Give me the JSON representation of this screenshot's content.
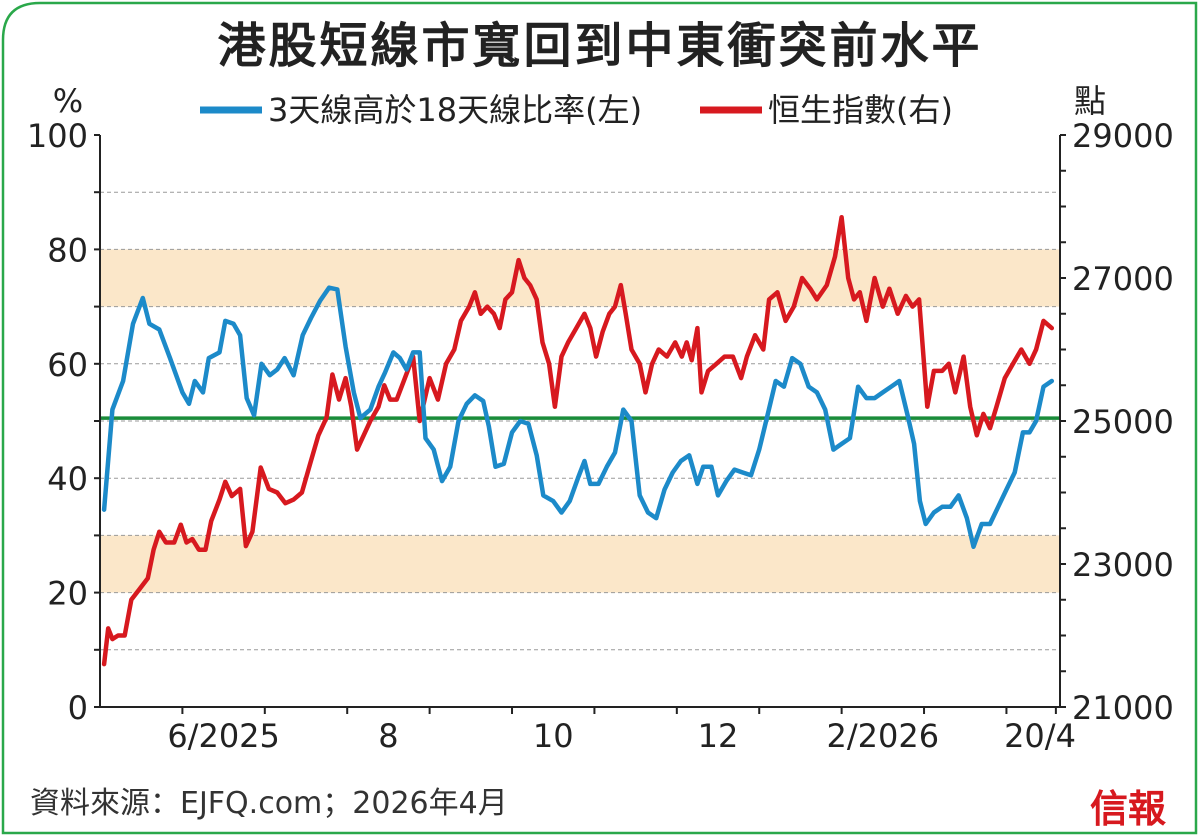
{
  "title": "港股短線市寬回到中東衝突前水平",
  "source": "資料來源：EJFQ.com；2026年4月",
  "logo": "信報",
  "colors": {
    "frame": "#2aa84a",
    "left_series": "#1c8ac9",
    "right_series": "#d7191f",
    "reference_line": "#1a8c3a",
    "band": "#fbe7c9"
  },
  "chart_data": {
    "type": "line",
    "left_axis": {
      "unit_label": "%",
      "ylim": [
        0,
        100
      ],
      "ticks": [
        0,
        20,
        40,
        60,
        80,
        100
      ]
    },
    "right_axis": {
      "unit_label": "點",
      "ylim": [
        21000,
        29000
      ],
      "ticks": [
        21000,
        23000,
        25000,
        27000,
        29000
      ]
    },
    "x_tick_labels": [
      {
        "label": "6/2025",
        "x": 1.5
      },
      {
        "label": "8",
        "x": 3.5
      },
      {
        "label": "10",
        "x": 5.5
      },
      {
        "label": "12",
        "x": 7.5
      },
      {
        "label": "2/2026",
        "x": 9.5
      },
      {
        "label": "20/4",
        "x": 11.6
      }
    ],
    "xlim": [
      0,
      11.65
    ],
    "bands": [
      {
        "from": 70,
        "to": 80
      },
      {
        "from": 20,
        "to": 30
      }
    ],
    "reference_line": {
      "axis": "left",
      "value": 50.5
    },
    "grid": "horizontal dashed",
    "legend": [
      "3天線高於18天線比率(左)",
      "恒生指數(右)"
    ],
    "series": [
      {
        "name": "3天線高於18天線比率(左)",
        "axis": "left",
        "points": [
          [
            0.05,
            34.5
          ],
          [
            0.15,
            52
          ],
          [
            0.28,
            57
          ],
          [
            0.4,
            67
          ],
          [
            0.52,
            71.5
          ],
          [
            0.6,
            67
          ],
          [
            0.72,
            66
          ],
          [
            0.85,
            61
          ],
          [
            1.0,
            55
          ],
          [
            1.08,
            53
          ],
          [
            1.15,
            57
          ],
          [
            1.25,
            55
          ],
          [
            1.32,
            61
          ],
          [
            1.45,
            62
          ],
          [
            1.52,
            67.5
          ],
          [
            1.62,
            67
          ],
          [
            1.7,
            65
          ],
          [
            1.78,
            54
          ],
          [
            1.87,
            51
          ],
          [
            1.96,
            60
          ],
          [
            2.06,
            58
          ],
          [
            2.15,
            59
          ],
          [
            2.24,
            61
          ],
          [
            2.35,
            58
          ],
          [
            2.46,
            65
          ],
          [
            2.56,
            68
          ],
          [
            2.67,
            71
          ],
          [
            2.78,
            73.3
          ],
          [
            2.88,
            73
          ],
          [
            2.98,
            63
          ],
          [
            3.08,
            55
          ],
          [
            3.16,
            50.5
          ],
          [
            3.28,
            52
          ],
          [
            3.38,
            56
          ],
          [
            3.46,
            58.5
          ],
          [
            3.56,
            62
          ],
          [
            3.64,
            61
          ],
          [
            3.72,
            59
          ],
          [
            3.8,
            62
          ],
          [
            3.88,
            62
          ],
          [
            3.95,
            47
          ],
          [
            4.05,
            45
          ],
          [
            4.15,
            39.5
          ],
          [
            4.25,
            42
          ],
          [
            4.35,
            50
          ],
          [
            4.45,
            53
          ],
          [
            4.55,
            54.5
          ],
          [
            4.65,
            53.5
          ],
          [
            4.72,
            49
          ],
          [
            4.8,
            42
          ],
          [
            4.9,
            42.5
          ],
          [
            5.0,
            48
          ],
          [
            5.1,
            50
          ],
          [
            5.2,
            49.5
          ],
          [
            5.3,
            44
          ],
          [
            5.38,
            37
          ],
          [
            5.5,
            36
          ],
          [
            5.6,
            34
          ],
          [
            5.7,
            36
          ],
          [
            5.8,
            40
          ],
          [
            5.88,
            43
          ],
          [
            5.95,
            39
          ],
          [
            6.05,
            39
          ],
          [
            6.15,
            42
          ],
          [
            6.25,
            44.5
          ],
          [
            6.35,
            52
          ],
          [
            6.45,
            50
          ],
          [
            6.55,
            37
          ],
          [
            6.65,
            34
          ],
          [
            6.75,
            33
          ],
          [
            6.85,
            38
          ],
          [
            6.95,
            41
          ],
          [
            7.05,
            43
          ],
          [
            7.15,
            44
          ],
          [
            7.25,
            39
          ],
          [
            7.32,
            42
          ],
          [
            7.42,
            42
          ],
          [
            7.5,
            37
          ],
          [
            7.6,
            39.5
          ],
          [
            7.7,
            41.5
          ],
          [
            7.8,
            41
          ],
          [
            7.9,
            40.5
          ],
          [
            8.0,
            45
          ],
          [
            8.1,
            51
          ],
          [
            8.2,
            57
          ],
          [
            8.3,
            56
          ],
          [
            8.4,
            61
          ],
          [
            8.5,
            60
          ],
          [
            8.6,
            56
          ],
          [
            8.7,
            55
          ],
          [
            8.8,
            52
          ],
          [
            8.9,
            45
          ],
          [
            9.0,
            46
          ],
          [
            9.1,
            47
          ],
          [
            9.2,
            56
          ],
          [
            9.3,
            54
          ],
          [
            9.4,
            54
          ],
          [
            9.5,
            55
          ],
          [
            9.6,
            56
          ],
          [
            9.7,
            57
          ],
          [
            9.8,
            51
          ],
          [
            9.88,
            46
          ],
          [
            9.95,
            36
          ],
          [
            10.02,
            32
          ],
          [
            10.12,
            34
          ],
          [
            10.22,
            35
          ],
          [
            10.32,
            35
          ],
          [
            10.42,
            37
          ],
          [
            10.52,
            33
          ],
          [
            10.6,
            28
          ],
          [
            10.7,
            32
          ],
          [
            10.8,
            32
          ],
          [
            10.9,
            35
          ],
          [
            11.0,
            38
          ],
          [
            11.1,
            41
          ],
          [
            11.2,
            48
          ],
          [
            11.28,
            48
          ],
          [
            11.36,
            50
          ],
          [
            11.45,
            56
          ],
          [
            11.55,
            57
          ]
        ]
      },
      {
        "name": "恒生指數(右)",
        "axis": "right",
        "points": [
          [
            0.05,
            21600
          ],
          [
            0.1,
            22100
          ],
          [
            0.15,
            21950
          ],
          [
            0.22,
            22000
          ],
          [
            0.3,
            22000
          ],
          [
            0.38,
            22500
          ],
          [
            0.48,
            22650
          ],
          [
            0.58,
            22800
          ],
          [
            0.65,
            23200
          ],
          [
            0.72,
            23450
          ],
          [
            0.8,
            23300
          ],
          [
            0.9,
            23300
          ],
          [
            0.98,
            23550
          ],
          [
            1.05,
            23300
          ],
          [
            1.12,
            23350
          ],
          [
            1.2,
            23200
          ],
          [
            1.28,
            23200
          ],
          [
            1.35,
            23600
          ],
          [
            1.45,
            23900
          ],
          [
            1.52,
            24150
          ],
          [
            1.6,
            23950
          ],
          [
            1.7,
            24050
          ],
          [
            1.77,
            23250
          ],
          [
            1.85,
            23450
          ],
          [
            1.95,
            24350
          ],
          [
            2.05,
            24050
          ],
          [
            2.15,
            24000
          ],
          [
            2.25,
            23850
          ],
          [
            2.35,
            23900
          ],
          [
            2.45,
            24000
          ],
          [
            2.55,
            24400
          ],
          [
            2.65,
            24800
          ],
          [
            2.75,
            25050
          ],
          [
            2.82,
            25650
          ],
          [
            2.9,
            25300
          ],
          [
            2.98,
            25600
          ],
          [
            3.05,
            25200
          ],
          [
            3.12,
            24600
          ],
          [
            3.2,
            24800
          ],
          [
            3.28,
            25000
          ],
          [
            3.38,
            25200
          ],
          [
            3.45,
            25500
          ],
          [
            3.52,
            25300
          ],
          [
            3.6,
            25300
          ],
          [
            3.7,
            25600
          ],
          [
            3.8,
            25900
          ],
          [
            3.88,
            25000
          ],
          [
            4.0,
            25600
          ],
          [
            4.1,
            25300
          ],
          [
            4.2,
            25800
          ],
          [
            4.3,
            26000
          ],
          [
            4.38,
            26400
          ],
          [
            4.48,
            26600
          ],
          [
            4.55,
            26800
          ],
          [
            4.62,
            26500
          ],
          [
            4.7,
            26600
          ],
          [
            4.78,
            26500
          ],
          [
            4.85,
            26300
          ],
          [
            4.92,
            26700
          ],
          [
            5.0,
            26800
          ],
          [
            5.08,
            27250
          ],
          [
            5.15,
            27000
          ],
          [
            5.22,
            26900
          ],
          [
            5.3,
            26700
          ],
          [
            5.37,
            26100
          ],
          [
            5.45,
            25800
          ],
          [
            5.52,
            25200
          ],
          [
            5.6,
            25900
          ],
          [
            5.68,
            26100
          ],
          [
            5.78,
            26300
          ],
          [
            5.88,
            26500
          ],
          [
            5.95,
            26300
          ],
          [
            6.02,
            25900
          ],
          [
            6.1,
            26250
          ],
          [
            6.18,
            26500
          ],
          [
            6.25,
            26600
          ],
          [
            6.32,
            26900
          ],
          [
            6.38,
            26500
          ],
          [
            6.45,
            26000
          ],
          [
            6.55,
            25800
          ],
          [
            6.62,
            25400
          ],
          [
            6.7,
            25800
          ],
          [
            6.78,
            26000
          ],
          [
            6.88,
            25900
          ],
          [
            6.98,
            26100
          ],
          [
            7.06,
            25900
          ],
          [
            7.12,
            26100
          ],
          [
            7.18,
            25850
          ],
          [
            7.25,
            26300
          ],
          [
            7.3,
            25400
          ],
          [
            7.38,
            25700
          ],
          [
            7.48,
            25800
          ],
          [
            7.58,
            25900
          ],
          [
            7.68,
            25900
          ],
          [
            7.78,
            25600
          ],
          [
            7.85,
            25900
          ],
          [
            7.95,
            26200
          ],
          [
            8.05,
            26000
          ],
          [
            8.12,
            26700
          ],
          [
            8.22,
            26800
          ],
          [
            8.32,
            26400
          ],
          [
            8.42,
            26600
          ],
          [
            8.52,
            27000
          ],
          [
            8.62,
            26850
          ],
          [
            8.7,
            26700
          ],
          [
            8.82,
            26900
          ],
          [
            8.92,
            27300
          ],
          [
            9.0,
            27850
          ],
          [
            9.08,
            27000
          ],
          [
            9.15,
            26700
          ],
          [
            9.22,
            26800
          ],
          [
            9.3,
            26400
          ],
          [
            9.4,
            27000
          ],
          [
            9.5,
            26600
          ],
          [
            9.58,
            26850
          ],
          [
            9.68,
            26500
          ],
          [
            9.78,
            26750
          ],
          [
            9.86,
            26600
          ],
          [
            9.94,
            26700
          ],
          [
            10.04,
            25200
          ],
          [
            10.12,
            25700
          ],
          [
            10.22,
            25700
          ],
          [
            10.3,
            25800
          ],
          [
            10.38,
            25400
          ],
          [
            10.48,
            25900
          ],
          [
            10.56,
            25200
          ],
          [
            10.64,
            24800
          ],
          [
            10.72,
            25100
          ],
          [
            10.8,
            24900
          ],
          [
            10.88,
            25200
          ],
          [
            10.98,
            25600
          ],
          [
            11.08,
            25800
          ],
          [
            11.18,
            26000
          ],
          [
            11.28,
            25800
          ],
          [
            11.36,
            26000
          ],
          [
            11.45,
            26400
          ],
          [
            11.55,
            26300
          ]
        ]
      }
    ]
  }
}
